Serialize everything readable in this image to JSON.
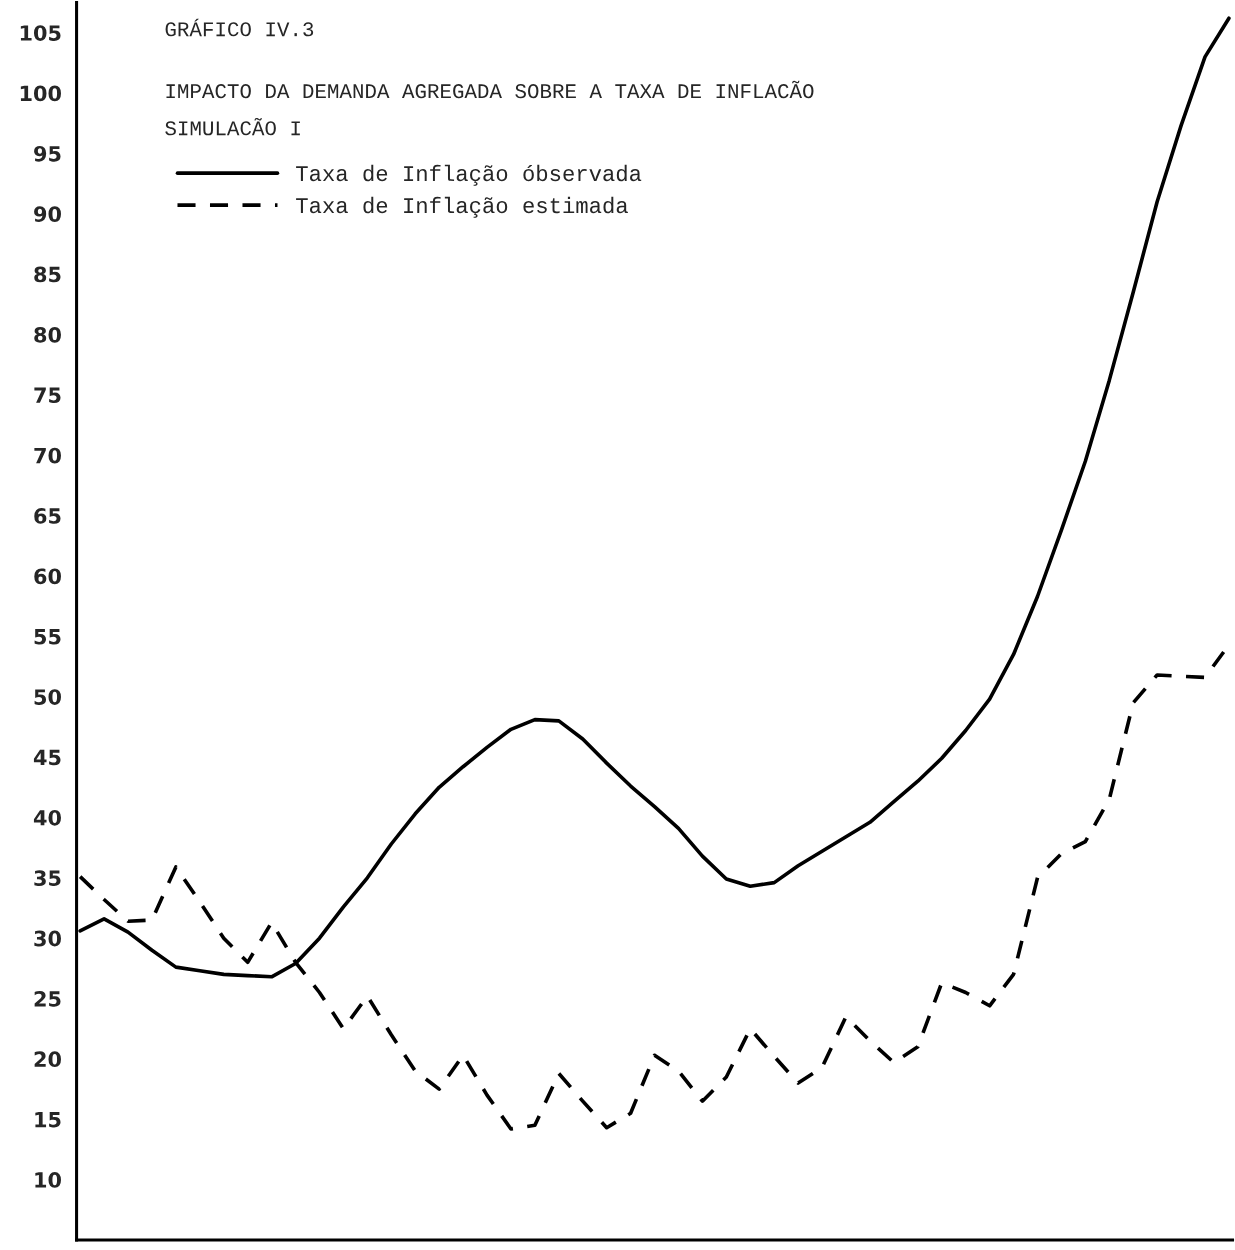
{
  "chart_data": {
    "type": "line",
    "title": "IMPACTO DA DEMANDA AGREGADA SOBRE A TAXA DE INFLACÃO",
    "subtitle": "SIMULACÃO I",
    "annotations": [
      "GRÁFICO IV.3"
    ],
    "categories": [
      null,
      null,
      null,
      null,
      null,
      null,
      null,
      null,
      null,
      null,
      null,
      null,
      null,
      null,
      null,
      null,
      null,
      null,
      null,
      null,
      null,
      null,
      null,
      null,
      null,
      null,
      null,
      null,
      null,
      null,
      null,
      null,
      null,
      null,
      null,
      null,
      null,
      null,
      null,
      null,
      null,
      null,
      null,
      null,
      null,
      null,
      null,
      null,
      null
    ],
    "series": [
      {
        "name": "Taxa de Inflação óbservada",
        "color": "#000000",
        "line_style": "solid",
        "values": [
          30.6,
          31.6,
          30.5,
          29.0,
          27.6,
          27.3,
          27.0,
          26.9,
          26.8,
          27.9,
          30.0,
          32.6,
          35.0,
          37.8,
          40.3,
          42.5,
          44.2,
          45.8,
          47.3,
          48.1,
          48.0,
          46.5,
          44.5,
          42.6,
          40.9,
          39.1,
          36.8,
          34.9,
          34.3,
          34.6,
          36.0,
          37.2,
          38.4,
          39.6,
          41.3,
          43.0,
          44.9,
          47.2,
          49.8,
          53.5,
          58.3,
          63.8,
          69.5,
          76.2,
          83.5,
          91.0,
          97.3,
          103.0,
          106.2
        ]
      },
      {
        "name": "Taxa de Inflação estimada",
        "color": "#000000",
        "line_style": "dashed",
        "values": [
          35.1,
          33.2,
          31.4,
          31.5,
          35.9,
          33.0,
          30.0,
          28.0,
          31.3,
          28.0,
          25.5,
          22.5,
          25.2,
          22.0,
          19.0,
          17.5,
          20.3,
          17.0,
          14.2,
          14.5,
          18.8,
          16.5,
          14.3,
          15.5,
          20.3,
          19.0,
          16.5,
          18.5,
          22.5,
          20.2,
          18.0,
          19.3,
          23.5,
          21.5,
          19.7,
          21.0,
          26.3,
          25.5,
          24.4,
          27.0,
          35.0,
          37.0,
          38.0,
          41.5,
          49.5,
          51.8,
          51.7,
          51.6,
          54.3
        ]
      }
    ],
    "ylim": [
      5,
      107.5
    ],
    "yticks": [
      10,
      15,
      20,
      25,
      30,
      35,
      40,
      45,
      50,
      55,
      60,
      65,
      70,
      75,
      80,
      85,
      90,
      95,
      100,
      105
    ],
    "tick_labels": "y",
    "grid": false,
    "legend": "top left",
    "marker": "none"
  }
}
